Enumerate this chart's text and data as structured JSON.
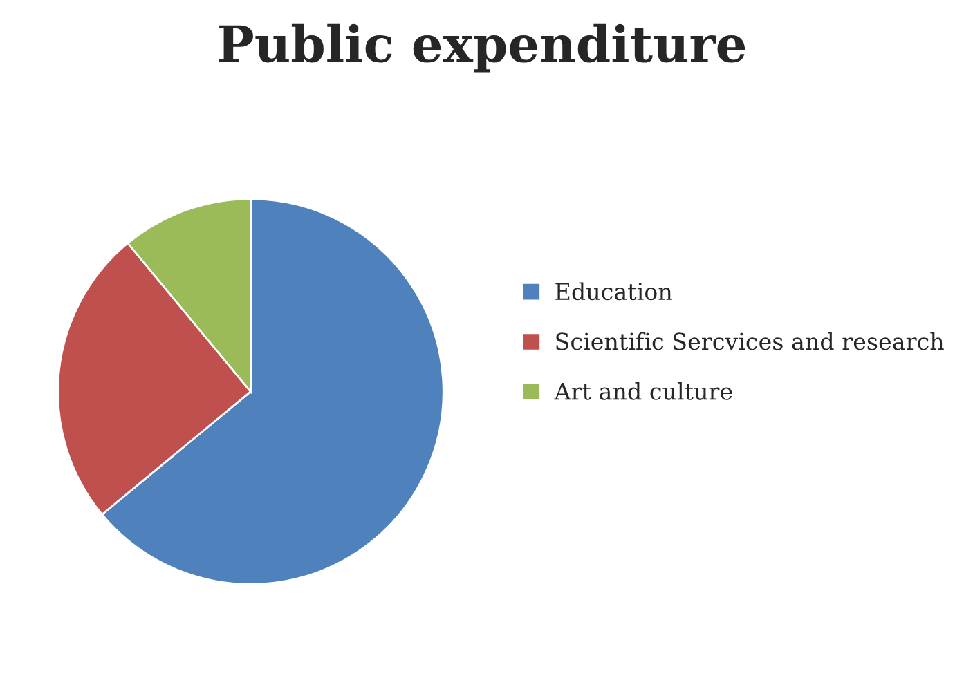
{
  "chart_data": {
    "type": "pie",
    "title": "Public expenditure",
    "categories": [
      "Education",
      "Scientific Sercvices and research",
      "Art and culture"
    ],
    "values": [
      64,
      25,
      11
    ],
    "colors": [
      "#4f81bd",
      "#c0504d",
      "#9bbb59"
    ],
    "legend": "right"
  }
}
